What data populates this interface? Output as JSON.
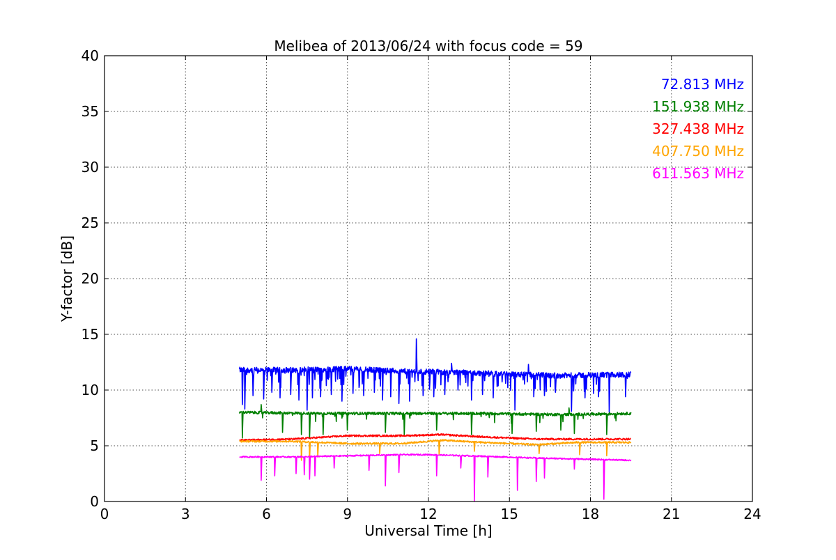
{
  "chart_data": {
    "type": "line",
    "title": "Melibea of 2013/06/24 with focus code = 59",
    "xlabel": "Universal Time [h]",
    "ylabel": "Y-factor [dB]",
    "xlim": [
      0,
      24
    ],
    "ylim": [
      0,
      40
    ],
    "xticks": [
      "0",
      "3",
      "6",
      "9",
      "12",
      "15",
      "18",
      "21",
      "24"
    ],
    "yticks": [
      "0",
      "5",
      "10",
      "15",
      "20",
      "25",
      "30",
      "35",
      "40"
    ],
    "grid": true,
    "legend_position": "top-right",
    "x_range_of_data": [
      5.0,
      19.5
    ],
    "series": [
      {
        "name": "72.813 MHz",
        "color": "#0000ff",
        "baseline": [
          [
            5.0,
            11.8
          ],
          [
            7.0,
            11.8
          ],
          [
            9.0,
            11.9
          ],
          [
            11.0,
            11.7
          ],
          [
            13.0,
            11.6
          ],
          [
            15.0,
            11.4
          ],
          [
            17.0,
            11.3
          ],
          [
            19.5,
            11.4
          ]
        ],
        "noise": 0.25,
        "dips": [
          [
            5.1,
            8.7
          ],
          [
            5.2,
            8.3
          ],
          [
            5.5,
            9.5
          ],
          [
            5.9,
            9.2
          ],
          [
            6.2,
            9.8
          ],
          [
            6.5,
            9.3
          ],
          [
            6.9,
            9.6
          ],
          [
            7.2,
            9.1
          ],
          [
            7.5,
            8.2
          ],
          [
            7.7,
            9.3
          ],
          [
            8.0,
            9.4
          ],
          [
            8.4,
            9.6
          ],
          [
            8.8,
            9.0
          ],
          [
            9.2,
            9.7
          ],
          [
            9.6,
            9.5
          ],
          [
            10.0,
            9.8
          ],
          [
            10.3,
            9.1
          ],
          [
            10.6,
            9.4
          ],
          [
            10.9,
            8.8
          ],
          [
            11.3,
            9.0
          ],
          [
            11.8,
            9.5
          ],
          [
            12.2,
            9.4
          ],
          [
            12.6,
            9.6
          ],
          [
            13.1,
            10.0
          ],
          [
            13.6,
            9.1
          ],
          [
            14.0,
            9.6
          ],
          [
            14.4,
            9.3
          ],
          [
            15.2,
            8.2
          ],
          [
            15.9,
            9.4
          ],
          [
            16.3,
            9.5
          ],
          [
            16.7,
            9.8
          ],
          [
            17.3,
            8.1
          ],
          [
            17.8,
            9.3
          ],
          [
            18.3,
            9.4
          ],
          [
            18.7,
            8.0
          ],
          [
            19.3,
            9.4
          ]
        ],
        "spikes": [
          [
            11.55,
            14.6
          ],
          [
            12.85,
            12.4
          ],
          [
            15.7,
            12.3
          ]
        ]
      },
      {
        "name": "151.938 MHz",
        "color": "#008000",
        "baseline": [
          [
            5.0,
            8.0
          ],
          [
            8.0,
            7.9
          ],
          [
            11.0,
            7.9
          ],
          [
            14.0,
            7.9
          ],
          [
            17.0,
            7.8
          ],
          [
            19.5,
            7.9
          ]
        ],
        "noise": 0.12,
        "dips": [
          [
            5.1,
            5.7
          ],
          [
            5.8,
            6.0
          ],
          [
            6.6,
            6.2
          ],
          [
            7.3,
            6.0
          ],
          [
            7.6,
            5.7
          ],
          [
            8.1,
            6.0
          ],
          [
            9.0,
            6.4
          ],
          [
            10.4,
            6.2
          ],
          [
            11.1,
            6.0
          ],
          [
            12.3,
            6.4
          ],
          [
            13.6,
            6.0
          ],
          [
            15.1,
            6.1
          ],
          [
            16.0,
            6.3
          ],
          [
            16.9,
            6.4
          ],
          [
            17.4,
            6.1
          ],
          [
            18.6,
            6.0
          ]
        ],
        "spikes": [
          [
            5.8,
            8.7
          ],
          [
            17.2,
            8.4
          ]
        ]
      },
      {
        "name": "327.438 MHz",
        "color": "#ff0000",
        "baseline": [
          [
            5.0,
            5.5
          ],
          [
            7.0,
            5.6
          ],
          [
            9.0,
            5.9
          ],
          [
            11.0,
            5.9
          ],
          [
            12.5,
            6.0
          ],
          [
            14.0,
            5.8
          ],
          [
            16.0,
            5.6
          ],
          [
            17.5,
            5.6
          ],
          [
            19.5,
            5.6
          ]
        ],
        "noise": 0.08,
        "dips": [],
        "spikes": []
      },
      {
        "name": "407.750 MHz",
        "color": "#ffa500",
        "baseline": [
          [
            5.0,
            5.4
          ],
          [
            7.0,
            5.4
          ],
          [
            9.0,
            5.2
          ],
          [
            11.0,
            5.2
          ],
          [
            12.5,
            5.5
          ],
          [
            14.0,
            5.3
          ],
          [
            16.0,
            5.1
          ],
          [
            17.5,
            5.3
          ],
          [
            19.5,
            5.3
          ]
        ],
        "noise": 0.08,
        "dips": [
          [
            7.3,
            3.7
          ],
          [
            7.6,
            3.8
          ],
          [
            7.9,
            4.0
          ],
          [
            10.2,
            4.3
          ],
          [
            12.4,
            4.2
          ],
          [
            13.7,
            4.5
          ],
          [
            16.1,
            4.3
          ],
          [
            17.6,
            4.2
          ],
          [
            18.6,
            4.1
          ]
        ],
        "spikes": []
      },
      {
        "name": "611.563 MHz",
        "color": "#ff00ff",
        "baseline": [
          [
            5.0,
            4.0
          ],
          [
            7.0,
            4.0
          ],
          [
            9.0,
            4.1
          ],
          [
            11.0,
            4.2
          ],
          [
            12.0,
            4.2
          ],
          [
            13.5,
            4.1
          ],
          [
            16.0,
            3.9
          ],
          [
            19.5,
            3.7
          ]
        ],
        "noise": 0.06,
        "dips": [
          [
            5.8,
            1.9
          ],
          [
            6.3,
            2.3
          ],
          [
            7.1,
            2.5
          ],
          [
            7.4,
            2.4
          ],
          [
            7.6,
            2.0
          ],
          [
            7.8,
            2.3
          ],
          [
            8.5,
            3.0
          ],
          [
            9.8,
            2.8
          ],
          [
            10.4,
            1.4
          ],
          [
            10.9,
            2.6
          ],
          [
            12.3,
            2.3
          ],
          [
            13.2,
            3.0
          ],
          [
            13.7,
            0.0
          ],
          [
            14.2,
            2.2
          ],
          [
            15.3,
            1.0
          ],
          [
            16.0,
            1.8
          ],
          [
            16.3,
            2.1
          ],
          [
            17.4,
            2.9
          ],
          [
            18.5,
            0.2
          ]
        ],
        "spikes": []
      }
    ]
  }
}
